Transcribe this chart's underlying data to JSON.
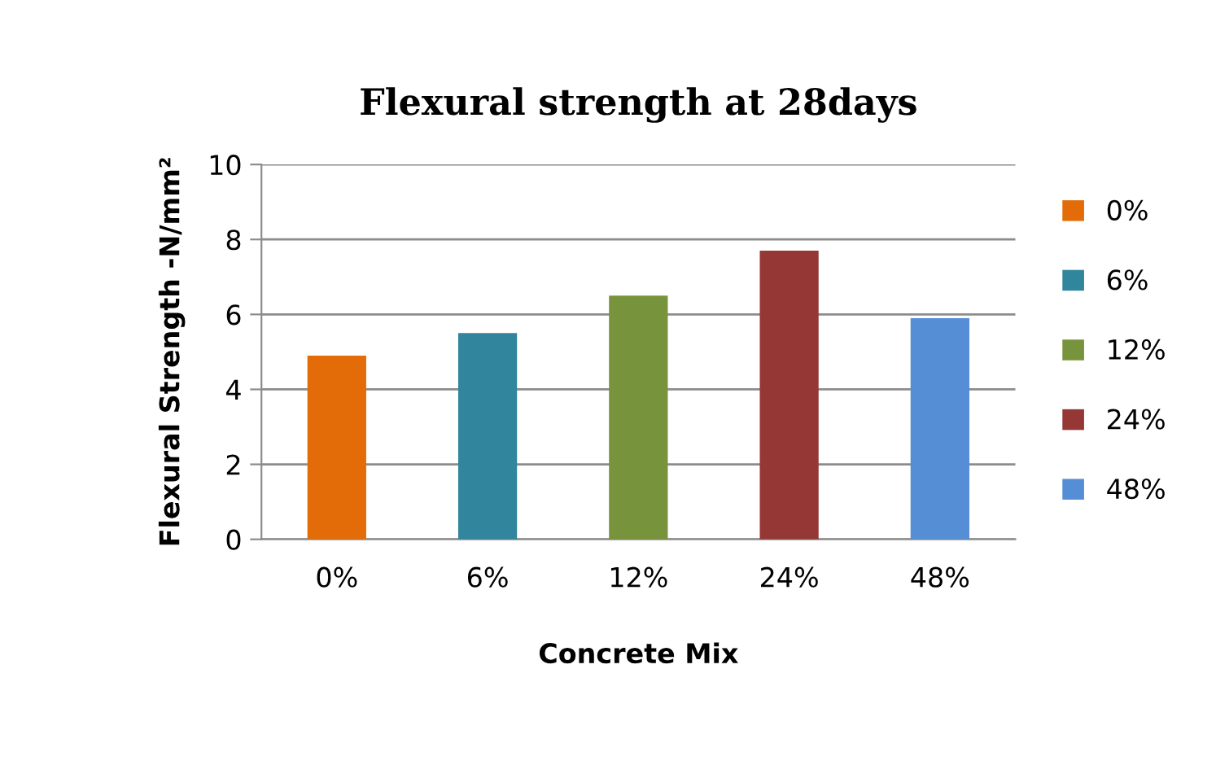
{
  "chart_data": {
    "type": "bar",
    "title": "Flexural strength at 28days",
    "xlabel": "Concrete Mix",
    "ylabel": "Flexural Strength -N/mm²",
    "categories": [
      "0%",
      "6%",
      "12%",
      "24%",
      "48%"
    ],
    "series": [
      {
        "name": "0%",
        "color": "#e36c09",
        "values": [
          4.9,
          null,
          null,
          null,
          null
        ]
      },
      {
        "name": "6%",
        "color": "#31859c",
        "values": [
          null,
          5.5,
          null,
          null,
          null
        ]
      },
      {
        "name": "12%",
        "color": "#77933c",
        "values": [
          null,
          null,
          6.5,
          null,
          null
        ]
      },
      {
        "name": "24%",
        "color": "#953735",
        "values": [
          null,
          null,
          null,
          7.7,
          null
        ]
      },
      {
        "name": "48%",
        "color": "#558ed5",
        "values": [
          null,
          null,
          null,
          null,
          5.9
        ]
      }
    ],
    "ylim": [
      0,
      10
    ],
    "yticks": [
      0,
      2,
      4,
      6,
      8,
      10
    ],
    "grid": "y",
    "legend": "right"
  }
}
